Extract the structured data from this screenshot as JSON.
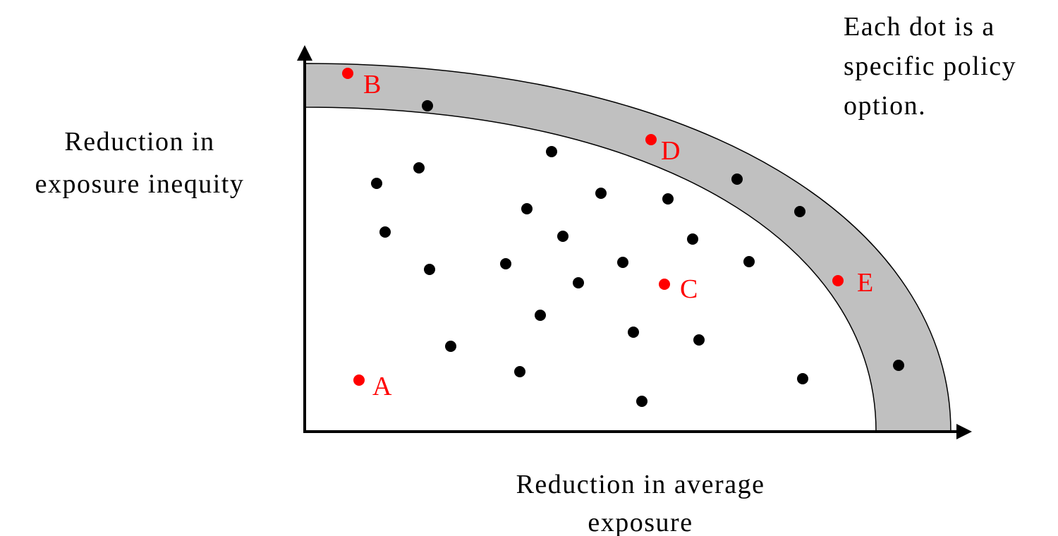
{
  "labels": {
    "y_axis_line1": "Reduction in",
    "y_axis_line2": "exposure inequity",
    "x_axis_line1": "Reduction in average",
    "x_axis_line2": "exposure",
    "note_line1": "Each dot is a",
    "note_line2": "specific policy",
    "note_line3": "option."
  },
  "colors": {
    "highlight": "#ff0000",
    "dot": "#000000",
    "frontier_band": "#c0c0c0"
  },
  "highlighted_points": [
    {
      "letter": "A"
    },
    {
      "letter": "B"
    },
    {
      "letter": "C"
    },
    {
      "letter": "D"
    },
    {
      "letter": "E"
    }
  ]
}
